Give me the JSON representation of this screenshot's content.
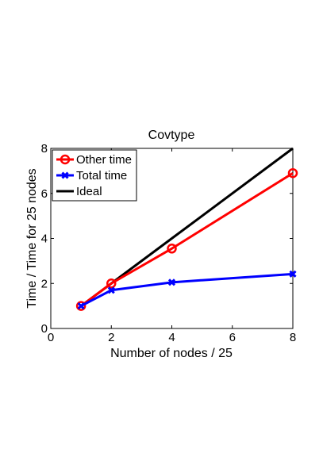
{
  "chart_data": {
    "type": "line",
    "title": "Covtype",
    "xlabel": "Number of nodes / 25",
    "ylabel": "Time / Time for 25 nodes",
    "xlim": [
      0,
      8
    ],
    "ylim": [
      0,
      8
    ],
    "xticks": [
      0,
      2,
      4,
      6,
      8
    ],
    "yticks": [
      0,
      2,
      4,
      6,
      8
    ],
    "xtick_labels": [
      "0",
      "2",
      "4",
      "6",
      "8"
    ],
    "ytick_labels": [
      "0",
      "2",
      "4",
      "6",
      "8"
    ],
    "grid": false,
    "legend_position": "top-left",
    "x": [
      1,
      2,
      4,
      8
    ],
    "series": [
      {
        "name": "Other time",
        "values": [
          1.0,
          2.0,
          3.55,
          6.9
        ],
        "color": "#ff0000",
        "marker": "circle"
      },
      {
        "name": "Total time",
        "values": [
          1.0,
          1.7,
          2.05,
          2.42
        ],
        "color": "#0000ff",
        "marker": "x"
      },
      {
        "name": "Ideal",
        "values": [
          1,
          2,
          4,
          8
        ],
        "color": "#000000",
        "marker": "none"
      }
    ]
  }
}
